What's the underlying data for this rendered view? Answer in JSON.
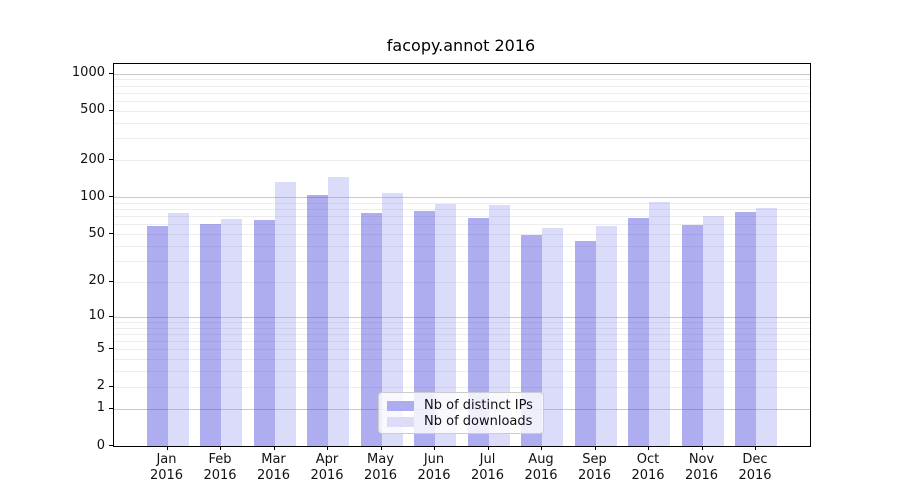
{
  "chart_data": {
    "type": "bar",
    "title": "facopy.annot 2016",
    "months": [
      "Jan",
      "Feb",
      "Mar",
      "Apr",
      "May",
      "Jun",
      "Jul",
      "Aug",
      "Sep",
      "Oct",
      "Nov",
      "Dec"
    ],
    "year_label": "2016",
    "series": [
      {
        "name": "Nb of distinct IPs",
        "color_solid": "#acacf0",
        "color_rgba": "rgba(68,68,221,0.44)",
        "values": [
          58,
          60,
          65,
          105,
          75,
          77,
          68,
          49,
          44,
          68,
          59,
          76
        ]
      },
      {
        "name": "Nb of downloads",
        "color_solid": "#dcdcf8",
        "color_rgba": "rgba(136,136,238,0.30)",
        "values": [
          75,
          66,
          134,
          145,
          109,
          88,
          86,
          56,
          58,
          92,
          70,
          82
        ]
      }
    ],
    "yscale": "log1p",
    "y_ticks": [
      0,
      1,
      2,
      5,
      10,
      20,
      50,
      100,
      200,
      500,
      1000
    ],
    "y_major_gridlines": [
      1,
      10,
      100,
      1000
    ],
    "y_minor_gridlines": [
      2,
      3,
      4,
      5,
      6,
      7,
      8,
      9,
      20,
      30,
      40,
      50,
      60,
      70,
      80,
      90,
      200,
      300,
      400,
      500,
      600,
      700,
      800,
      900
    ],
    "ylim": [
      0,
      1200
    ],
    "grid": true,
    "legend_position": "lower-center",
    "colors": {
      "major_grid": "#c9c9c9",
      "minor_grid": "#ededed",
      "spine": "#000000",
      "text": "#111111"
    }
  }
}
